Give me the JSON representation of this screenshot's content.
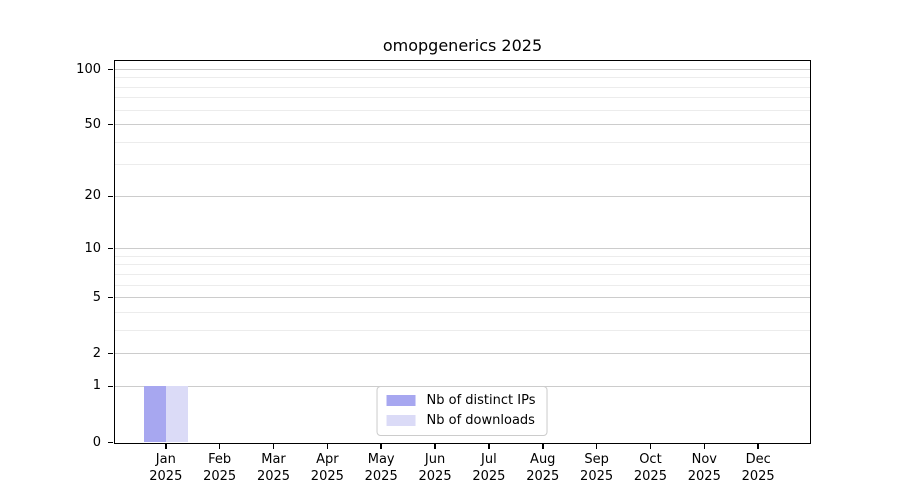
{
  "figure": {
    "title": "omopgenerics 2025"
  },
  "chart_data": {
    "type": "bar",
    "title": "omopgenerics 2025",
    "x_tick_months": [
      "Jan",
      "Feb",
      "Mar",
      "Apr",
      "May",
      "Jun",
      "Jul",
      "Aug",
      "Sep",
      "Oct",
      "Nov",
      "Dec"
    ],
    "x_tick_year": "2025",
    "series": [
      {
        "name": "Nb of distinct IPs",
        "color": "#a7a7f0",
        "values": [
          1,
          0,
          0,
          0,
          0,
          0,
          0,
          0,
          0,
          0,
          0,
          0
        ]
      },
      {
        "name": "Nb of downloads",
        "color": "#dbdbf7",
        "values": [
          1,
          0,
          0,
          0,
          0,
          0,
          0,
          0,
          0,
          0,
          0,
          0
        ]
      }
    ],
    "yscale": "log1p",
    "ylim": [
      0,
      100
    ],
    "yticks_major": [
      0,
      1,
      2,
      5,
      10,
      20,
      50,
      100
    ],
    "yticks_minor": [
      3,
      4,
      6,
      7,
      8,
      9,
      30,
      40,
      60,
      70,
      80,
      90
    ],
    "grid": true,
    "legend_position": "lower center",
    "colors": {
      "major_grid": "#cccccc",
      "minor_grid": "#ececec",
      "axis": "#000000",
      "background": "#ffffff"
    }
  }
}
